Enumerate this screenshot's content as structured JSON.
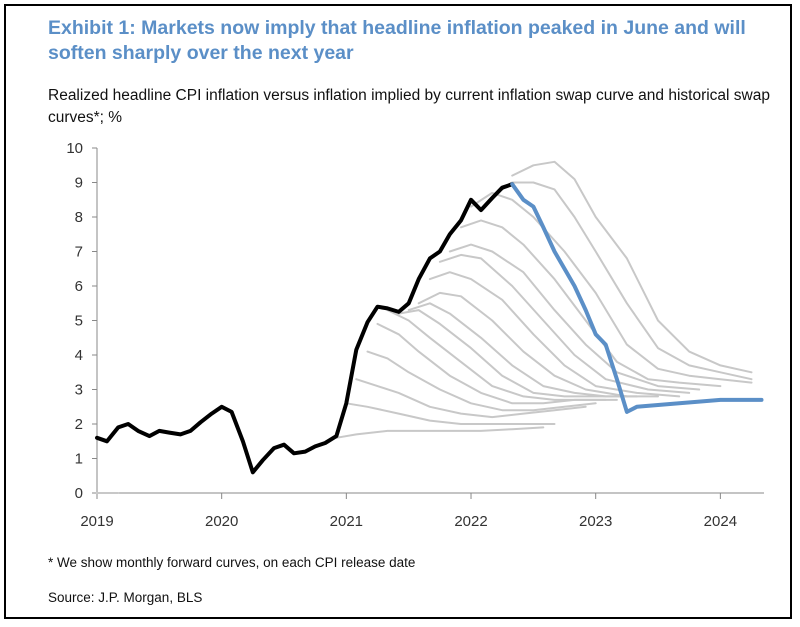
{
  "title": "Exhibit 1:  Markets now imply that headline inflation peaked in June and will soften sharply over the next year",
  "subtitle": "Realized headline CPI inflation versus inflation implied by current inflation swap curve and historical swap curves*; %",
  "footnote": "* We show monthly forward curves, on each CPI release date",
  "source": "Source: J.P. Morgan, BLS",
  "colors": {
    "realized": "#000000",
    "current_swap": "#5b8fc7",
    "historical_swaps": "#c8c8c8",
    "title": "#5b8fc7"
  },
  "chart_data": {
    "type": "line",
    "title": "",
    "xlabel": "",
    "ylabel": "",
    "xlim": [
      2019.0,
      2024.35
    ],
    "ylim": [
      0,
      10
    ],
    "x_ticks": [
      "2019",
      "2020",
      "2021",
      "2022",
      "2023",
      "2024"
    ],
    "y_ticks": [
      "0",
      "1",
      "2",
      "3",
      "4",
      "5",
      "6",
      "7",
      "8",
      "9",
      "10"
    ],
    "grid": false,
    "legend": "none",
    "series": [
      {
        "role": "realized",
        "x": [
          2019.0,
          2019.08,
          2019.17,
          2019.25,
          2019.33,
          2019.42,
          2019.5,
          2019.58,
          2019.67,
          2019.75,
          2019.83,
          2019.92,
          2020.0,
          2020.08,
          2020.17,
          2020.25,
          2020.33,
          2020.42,
          2020.5,
          2020.58,
          2020.67,
          2020.75,
          2020.83,
          2020.92,
          2021.0,
          2021.08,
          2021.17,
          2021.25,
          2021.33,
          2021.42,
          2021.5,
          2021.58,
          2021.67,
          2021.75,
          2021.83,
          2021.92,
          2022.0,
          2022.08,
          2022.17,
          2022.25,
          2022.33
        ],
        "values": [
          1.6,
          1.5,
          1.9,
          2.0,
          1.8,
          1.65,
          1.8,
          1.75,
          1.7,
          1.8,
          2.05,
          2.3,
          2.5,
          2.35,
          1.5,
          0.6,
          0.95,
          1.3,
          1.4,
          1.15,
          1.2,
          1.35,
          1.45,
          1.65,
          2.6,
          4.15,
          4.95,
          5.4,
          5.35,
          5.25,
          5.5,
          6.2,
          6.8,
          7.0,
          7.5,
          7.9,
          8.5,
          8.2,
          8.55,
          8.85,
          8.95
        ]
      },
      {
        "role": "current_swap",
        "x": [
          2022.33,
          2022.42,
          2022.5,
          2022.58,
          2022.67,
          2022.75,
          2022.83,
          2022.92,
          2023.0,
          2023.08,
          2023.17,
          2023.25,
          2023.33,
          2023.5,
          2023.67,
          2023.83,
          2024.0,
          2024.17,
          2024.33
        ],
        "values": [
          8.95,
          8.5,
          8.3,
          7.7,
          7.0,
          6.5,
          6.0,
          5.3,
          4.6,
          4.3,
          3.3,
          2.35,
          2.5,
          2.55,
          2.6,
          2.65,
          2.7,
          2.7,
          2.7
        ]
      },
      {
        "role": "historical",
        "x": [
          2022.33,
          2022.5,
          2022.67,
          2022.83,
          2023.0,
          2023.25,
          2023.5,
          2023.75,
          2024.0,
          2024.25
        ],
        "values": [
          9.2,
          9.5,
          9.6,
          9.1,
          8.0,
          6.8,
          5.0,
          4.1,
          3.7,
          3.5
        ]
      },
      {
        "role": "historical",
        "x": [
          2022.17,
          2022.33,
          2022.5,
          2022.67,
          2022.83,
          2023.0,
          2023.25,
          2023.5,
          2023.75,
          2024.0,
          2024.25
        ],
        "values": [
          8.6,
          9.0,
          9.0,
          8.8,
          8.0,
          7.0,
          5.5,
          4.2,
          3.7,
          3.5,
          3.3
        ]
      },
      {
        "role": "historical",
        "x": [
          2022.0,
          2022.17,
          2022.33,
          2022.5,
          2022.75,
          2023.0,
          2023.25,
          2023.5,
          2023.75,
          2024.0,
          2024.25
        ],
        "values": [
          8.3,
          8.7,
          8.5,
          8.0,
          7.0,
          5.8,
          4.3,
          3.6,
          3.4,
          3.3,
          3.2
        ]
      },
      {
        "role": "historical",
        "x": [
          2021.92,
          2022.08,
          2022.25,
          2022.42,
          2022.67,
          2022.92,
          2023.17,
          2023.42,
          2023.67,
          2024.0
        ],
        "values": [
          7.7,
          7.9,
          7.7,
          7.2,
          6.2,
          5.0,
          3.8,
          3.3,
          3.2,
          3.1
        ]
      },
      {
        "role": "historical",
        "x": [
          2021.83,
          2022.0,
          2022.17,
          2022.42,
          2022.67,
          2022.92,
          2023.17,
          2023.5,
          2023.83
        ],
        "values": [
          7.0,
          7.2,
          7.0,
          6.4,
          5.3,
          4.3,
          3.5,
          3.1,
          3.0
        ]
      },
      {
        "role": "historical",
        "x": [
          2021.75,
          2021.92,
          2022.08,
          2022.33,
          2022.58,
          2022.83,
          2023.08,
          2023.42,
          2023.75
        ],
        "values": [
          6.7,
          6.9,
          6.8,
          6.0,
          5.0,
          4.0,
          3.3,
          3.0,
          2.9
        ]
      },
      {
        "role": "historical",
        "x": [
          2021.67,
          2021.83,
          2022.0,
          2022.25,
          2022.5,
          2022.75,
          2023.0,
          2023.33,
          2023.67
        ],
        "values": [
          6.2,
          6.4,
          6.2,
          5.6,
          4.6,
          3.7,
          3.1,
          2.9,
          2.8
        ]
      },
      {
        "role": "historical",
        "x": [
          2021.58,
          2021.75,
          2021.92,
          2022.17,
          2022.42,
          2022.67,
          2022.92,
          2023.25,
          2023.5
        ],
        "values": [
          5.5,
          5.8,
          5.7,
          5.0,
          4.1,
          3.4,
          3.0,
          2.8,
          2.8
        ]
      },
      {
        "role": "historical",
        "x": [
          2021.5,
          2021.67,
          2021.83,
          2022.08,
          2022.33,
          2022.58,
          2022.83,
          2023.08,
          2023.33
        ],
        "values": [
          5.3,
          5.5,
          5.2,
          4.5,
          3.7,
          3.1,
          2.9,
          2.8,
          2.8
        ]
      },
      {
        "role": "historical",
        "x": [
          2021.42,
          2021.58,
          2021.75,
          2022.0,
          2022.25,
          2022.5,
          2022.75,
          2023.0,
          2023.25
        ],
        "values": [
          5.2,
          5.3,
          4.9,
          4.2,
          3.4,
          2.9,
          2.8,
          2.8,
          2.8
        ]
      },
      {
        "role": "historical",
        "x": [
          2021.33,
          2021.5,
          2021.67,
          2021.92,
          2022.17,
          2022.42,
          2022.67,
          2022.92,
          2023.17
        ],
        "values": [
          5.3,
          5.0,
          4.5,
          3.8,
          3.1,
          2.8,
          2.7,
          2.7,
          2.7
        ]
      },
      {
        "role": "historical",
        "x": [
          2021.25,
          2021.42,
          2021.58,
          2021.83,
          2022.08,
          2022.33,
          2022.58,
          2022.83,
          2023.08
        ],
        "values": [
          4.9,
          4.6,
          4.1,
          3.4,
          2.9,
          2.6,
          2.6,
          2.7,
          2.7
        ]
      },
      {
        "role": "historical",
        "x": [
          2021.17,
          2021.33,
          2021.5,
          2021.75,
          2022.0,
          2022.25,
          2022.5,
          2022.75,
          2023.0
        ],
        "values": [
          4.1,
          3.9,
          3.5,
          3.0,
          2.6,
          2.4,
          2.4,
          2.5,
          2.6
        ]
      },
      {
        "role": "historical",
        "x": [
          2021.08,
          2021.25,
          2021.42,
          2021.67,
          2021.92,
          2022.17,
          2022.42,
          2022.67,
          2022.92
        ],
        "values": [
          3.3,
          3.1,
          2.9,
          2.5,
          2.3,
          2.2,
          2.3,
          2.4,
          2.5
        ]
      },
      {
        "role": "historical",
        "x": [
          2021.0,
          2021.17,
          2021.42,
          2021.67,
          2021.92,
          2022.17,
          2022.42,
          2022.67
        ],
        "values": [
          2.6,
          2.5,
          2.3,
          2.1,
          2.0,
          2.0,
          2.0,
          2.0
        ]
      },
      {
        "role": "historical",
        "x": [
          2020.92,
          2021.08,
          2021.33,
          2021.58,
          2021.83,
          2022.08,
          2022.33,
          2022.58
        ],
        "values": [
          1.6,
          1.7,
          1.8,
          1.8,
          1.8,
          1.8,
          1.85,
          1.9
        ]
      },
      {
        "role": "historical",
        "x": [
          2019.0,
          2019.17
        ],
        "values": [
          0.0,
          0.0
        ]
      }
    ]
  }
}
